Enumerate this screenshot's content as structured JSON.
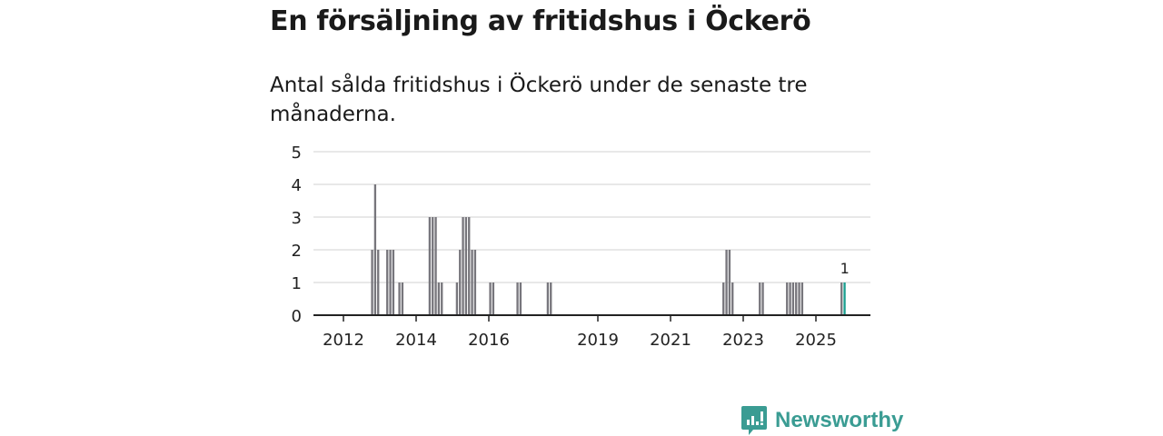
{
  "chart_data": {
    "type": "bar",
    "title": "En försäljning av fritidshus i Öckerö",
    "subtitle": "Antal sålda fritidshus i Öckerö under de senaste tre månaderna.",
    "xlabel": "",
    "ylabel": "",
    "ylim": [
      0,
      5
    ],
    "yticks": [
      "0",
      "1",
      "2",
      "3",
      "4",
      "5"
    ],
    "xticks": [
      "2012",
      "2014",
      "2016",
      "2019",
      "2021",
      "2023",
      "2025"
    ],
    "xlim": [
      "2011-04",
      "2026-07"
    ],
    "grid": true,
    "bar_color": "#77767c",
    "highlight_color": "#1a9e8f",
    "x": [
      "2012-10",
      "2012-11",
      "2012-12",
      "2013-03",
      "2013-04",
      "2013-05",
      "2013-07",
      "2013-08",
      "2014-05",
      "2014-06",
      "2014-07",
      "2014-08",
      "2014-09",
      "2015-02",
      "2015-03",
      "2015-04",
      "2015-05",
      "2015-06",
      "2015-07",
      "2015-08",
      "2016-01",
      "2016-02",
      "2016-10",
      "2016-11",
      "2017-08",
      "2017-09",
      "2022-06",
      "2022-07",
      "2022-08",
      "2022-09",
      "2023-06",
      "2023-07",
      "2024-03",
      "2024-04",
      "2024-05",
      "2024-06",
      "2024-07",
      "2024-08",
      "2025-09",
      "2025-10"
    ],
    "values": [
      2,
      4,
      2,
      2,
      2,
      2,
      1,
      1,
      3,
      3,
      3,
      1,
      1,
      1,
      2,
      3,
      3,
      3,
      2,
      2,
      1,
      1,
      1,
      1,
      1,
      1,
      1,
      2,
      2,
      1,
      1,
      1,
      1,
      1,
      1,
      1,
      1,
      1,
      1,
      1
    ],
    "highlight": {
      "x": "2025-10",
      "label": "1"
    }
  },
  "branding": {
    "logo_text": "Newsworthy"
  }
}
